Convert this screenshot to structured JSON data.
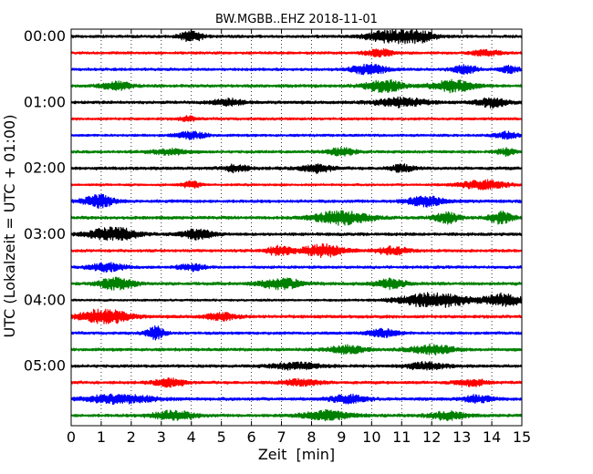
{
  "chart_data": {
    "type": "line",
    "title": "BW.MGBB..EHZ 2018-11-01",
    "xlabel": "Zeit  [min]",
    "ylabel": "UTC (Lokalzeit = UTC + 01:00)",
    "xlim": [
      0,
      15
    ],
    "x_ticks": [
      "0",
      "1",
      "2",
      "3",
      "4",
      "5",
      "6",
      "7",
      "8",
      "9",
      "10",
      "11",
      "12",
      "13",
      "14",
      "15"
    ],
    "y_ticks": [
      "00:00",
      "01:00",
      "02:00",
      "03:00",
      "04:00",
      "05:00"
    ],
    "grid": "vertical dotted",
    "colors": [
      "#000000",
      "#ff0000",
      "#0000ff",
      "#008000"
    ],
    "series": [
      {
        "start": "00:00",
        "color": "#000000",
        "base": 0.28,
        "bursts": [
          [
            4.0,
            0.4,
            0.9
          ],
          [
            10.5,
            0.7,
            1.0
          ],
          [
            11.5,
            0.6,
            1.0
          ]
        ]
      },
      {
        "start": "00:15",
        "color": "#ff0000",
        "base": 0.25,
        "bursts": [
          [
            10.3,
            0.5,
            0.6
          ],
          [
            13.8,
            0.5,
            0.5
          ]
        ]
      },
      {
        "start": "00:30",
        "color": "#0000ff",
        "base": 0.27,
        "bursts": [
          [
            9.9,
            0.6,
            0.9
          ],
          [
            13.1,
            0.4,
            0.7
          ],
          [
            14.6,
            0.3,
            0.6
          ]
        ]
      },
      {
        "start": "00:45",
        "color": "#008000",
        "base": 0.3,
        "bursts": [
          [
            1.5,
            0.5,
            0.7
          ],
          [
            10.4,
            0.6,
            1.1
          ],
          [
            12.7,
            0.7,
            1.0
          ]
        ]
      },
      {
        "start": "01:00",
        "color": "#000000",
        "base": 0.3,
        "bursts": [
          [
            5.2,
            0.5,
            0.6
          ],
          [
            11.0,
            0.8,
            0.8
          ],
          [
            14.0,
            0.5,
            0.8
          ]
        ]
      },
      {
        "start": "01:15",
        "color": "#ff0000",
        "base": 0.25,
        "bursts": [
          [
            3.9,
            0.3,
            0.4
          ]
        ]
      },
      {
        "start": "01:30",
        "color": "#0000ff",
        "base": 0.25,
        "bursts": [
          [
            4.0,
            0.5,
            0.6
          ],
          [
            14.5,
            0.4,
            0.6
          ]
        ]
      },
      {
        "start": "01:45",
        "color": "#008000",
        "base": 0.27,
        "bursts": [
          [
            3.3,
            0.6,
            0.5
          ],
          [
            9.0,
            0.5,
            0.6
          ],
          [
            14.5,
            0.3,
            0.6
          ]
        ]
      },
      {
        "start": "02:00",
        "color": "#000000",
        "base": 0.3,
        "bursts": [
          [
            5.5,
            0.4,
            0.6
          ],
          [
            8.2,
            0.5,
            0.7
          ],
          [
            11.0,
            0.4,
            0.6
          ]
        ]
      },
      {
        "start": "02:15",
        "color": "#ff0000",
        "base": 0.22,
        "bursts": [
          [
            4.0,
            0.3,
            0.6
          ],
          [
            13.7,
            0.8,
            0.8
          ]
        ]
      },
      {
        "start": "02:30",
        "color": "#0000ff",
        "base": 0.3,
        "bursts": [
          [
            0.9,
            0.5,
            1.1
          ],
          [
            11.8,
            0.6,
            0.9
          ]
        ]
      },
      {
        "start": "02:45",
        "color": "#008000",
        "base": 0.3,
        "bursts": [
          [
            9.0,
            0.9,
            1.2
          ],
          [
            12.5,
            0.4,
            1.0
          ],
          [
            14.3,
            0.4,
            1.0
          ]
        ]
      },
      {
        "start": "03:00",
        "color": "#000000",
        "base": 0.3,
        "bursts": [
          [
            1.4,
            0.8,
            1.2
          ],
          [
            4.2,
            0.5,
            0.9
          ]
        ]
      },
      {
        "start": "03:15",
        "color": "#ff0000",
        "base": 0.28,
        "bursts": [
          [
            8.4,
            0.7,
            1.1
          ],
          [
            6.9,
            0.4,
            0.8
          ],
          [
            10.7,
            0.5,
            0.7
          ]
        ]
      },
      {
        "start": "03:30",
        "color": "#0000ff",
        "base": 0.27,
        "bursts": [
          [
            1.2,
            0.6,
            0.7
          ],
          [
            4.0,
            0.4,
            0.6
          ]
        ]
      },
      {
        "start": "03:45",
        "color": "#008000",
        "base": 0.3,
        "bursts": [
          [
            1.5,
            0.6,
            1.0
          ],
          [
            7.0,
            0.7,
            0.9
          ],
          [
            10.6,
            0.5,
            0.8
          ]
        ]
      },
      {
        "start": "04:00",
        "color": "#000000",
        "base": 0.22,
        "bursts": [
          [
            12.1,
            1.2,
            1.3
          ],
          [
            14.4,
            0.6,
            1.1
          ]
        ]
      },
      {
        "start": "04:15",
        "color": "#ff0000",
        "base": 0.3,
        "bursts": [
          [
            1.1,
            0.8,
            1.4
          ],
          [
            5.0,
            0.5,
            0.6
          ]
        ]
      },
      {
        "start": "04:30",
        "color": "#0000ff",
        "base": 0.27,
        "bursts": [
          [
            2.8,
            0.3,
            1.2
          ],
          [
            10.4,
            0.5,
            0.7
          ]
        ]
      },
      {
        "start": "04:45",
        "color": "#008000",
        "base": 0.3,
        "bursts": [
          [
            9.2,
            0.6,
            0.7
          ],
          [
            12.0,
            0.7,
            0.8
          ]
        ]
      },
      {
        "start": "05:00",
        "color": "#000000",
        "base": 0.28,
        "bursts": [
          [
            7.5,
            0.8,
            0.6
          ],
          [
            11.8,
            0.7,
            0.6
          ]
        ]
      },
      {
        "start": "05:15",
        "color": "#ff0000",
        "base": 0.28,
        "bursts": [
          [
            3.3,
            0.5,
            0.7
          ],
          [
            7.7,
            0.6,
            0.6
          ],
          [
            13.3,
            0.5,
            0.6
          ]
        ]
      },
      {
        "start": "05:30",
        "color": "#0000ff",
        "base": 0.3,
        "bursts": [
          [
            1.6,
            1.2,
            0.7
          ],
          [
            9.2,
            0.6,
            0.7
          ],
          [
            13.5,
            0.5,
            0.6
          ]
        ]
      },
      {
        "start": "05:45",
        "color": "#008000",
        "base": 0.3,
        "bursts": [
          [
            3.4,
            0.7,
            0.8
          ],
          [
            8.5,
            0.8,
            0.8
          ],
          [
            12.5,
            0.6,
            0.7
          ]
        ]
      }
    ]
  }
}
